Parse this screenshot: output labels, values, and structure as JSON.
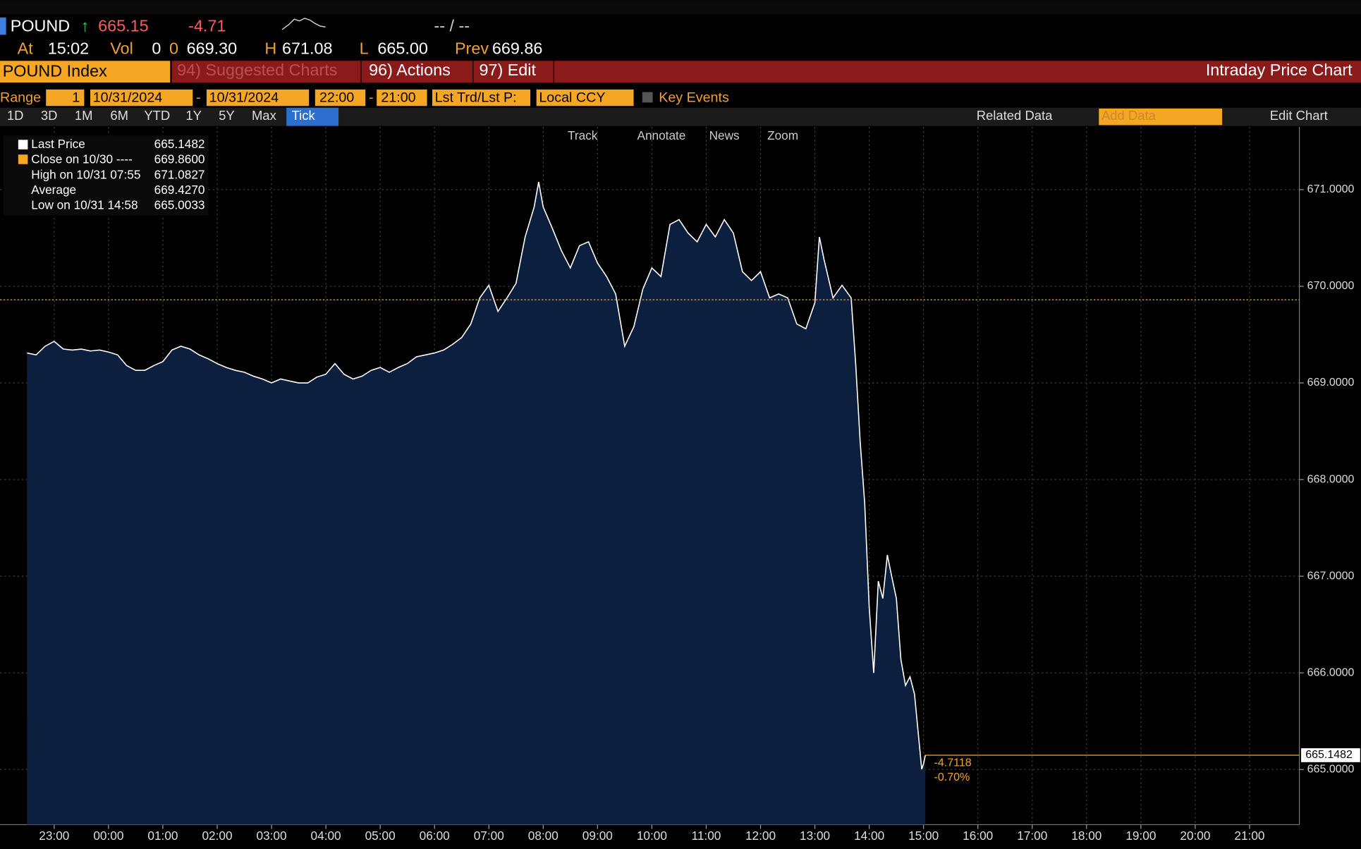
{
  "header": {
    "ticker": "POUND",
    "price": "665.15",
    "change": "-4.71",
    "bid_ask": "-- / --",
    "at": "At",
    "time": "15:02",
    "vol": "Vol",
    "vol_value": "0",
    "vol_value2": "0",
    "open": "669.30",
    "high_label": "H",
    "high": "671.08",
    "low_label": "L",
    "low": "665.00",
    "prev_label": "Prev",
    "prev": "669.86"
  },
  "toolbar": {
    "security": "POUND Index",
    "suggested": "94) Suggested Charts",
    "actions": "96) Actions",
    "edit": "97) Edit",
    "view": "Intraday Price Chart"
  },
  "range": {
    "label": "Range",
    "period": "1",
    "start": "10/31/2024",
    "dash1": "-",
    "end": "10/31/2024",
    "time_start": "22:00",
    "dash2": "-",
    "time_end": "21:00",
    "field": "Lst Trd/Lst P:",
    "currency": "Local CCY",
    "key_events": "Key Events"
  },
  "periods": [
    "1D",
    "3D",
    "1M",
    "6M",
    "YTD",
    "1Y",
    "5Y",
    "Max",
    "Tick"
  ],
  "right_tools": {
    "related": "Related Data",
    "add": "Add Data",
    "edit_chart": "Edit Chart"
  },
  "chart_tools": [
    "Track",
    "Annotate",
    "News",
    "Zoom"
  ],
  "legend": [
    {
      "name": "Last Price",
      "value": "665.1482"
    },
    {
      "name": "Close on 10/30 ----",
      "value": "669.8600"
    },
    {
      "name": "High on 10/31 07:55",
      "value": "671.0827"
    },
    {
      "name": "Average",
      "value": "669.4270"
    },
    {
      "name": "Low on 10/31 14:58",
      "value": "665.0033"
    }
  ],
  "chart_data": {
    "type": "area",
    "color": "#0d1f3f",
    "line_color": "#ffffff",
    "x": [
      "22:30",
      "22:40",
      "22:50",
      "23:00",
      "23:10",
      "23:20",
      "23:30",
      "23:40",
      "23:50",
      "00:00",
      "00:10",
      "00:20",
      "00:30",
      "00:40",
      "00:50",
      "01:00",
      "01:10",
      "01:20",
      "01:30",
      "01:40",
      "01:50",
      "02:00",
      "02:10",
      "02:20",
      "02:30",
      "02:40",
      "02:50",
      "03:00",
      "03:10",
      "03:20",
      "03:30",
      "03:40",
      "03:50",
      "04:00",
      "04:10",
      "04:20",
      "04:30",
      "04:40",
      "04:50",
      "05:00",
      "05:10",
      "05:20",
      "05:30",
      "05:40",
      "05:50",
      "06:00",
      "06:10",
      "06:20",
      "06:30",
      "06:40",
      "06:50",
      "07:00",
      "07:10",
      "07:20",
      "07:30",
      "07:40",
      "07:50",
      "07:55",
      "08:00",
      "08:10",
      "08:20",
      "08:30",
      "08:40",
      "08:50",
      "09:00",
      "09:10",
      "09:20",
      "09:30",
      "09:40",
      "09:50",
      "10:00",
      "10:10",
      "10:20",
      "10:30",
      "10:40",
      "10:50",
      "11:00",
      "11:10",
      "11:20",
      "11:30",
      "11:40",
      "11:50",
      "12:00",
      "12:10",
      "12:20",
      "12:30",
      "12:40",
      "12:50",
      "13:00",
      "13:05",
      "13:10",
      "13:20",
      "13:30",
      "13:40",
      "13:45",
      "13:50",
      "13:55",
      "14:00",
      "14:05",
      "14:10",
      "14:15",
      "14:20",
      "14:25",
      "14:30",
      "14:35",
      "14:40",
      "14:45",
      "14:50",
      "14:58",
      "15:00",
      "15:02"
    ],
    "values": [
      669.31,
      669.29,
      669.38,
      669.43,
      669.35,
      669.34,
      669.35,
      669.33,
      669.34,
      669.32,
      669.29,
      669.18,
      669.13,
      669.13,
      669.18,
      669.22,
      669.34,
      669.38,
      669.35,
      669.29,
      669.25,
      669.2,
      669.16,
      669.13,
      669.11,
      669.07,
      669.04,
      669.0,
      669.04,
      669.02,
      669.0,
      669.0,
      669.06,
      669.09,
      669.2,
      669.09,
      669.04,
      669.07,
      669.13,
      669.16,
      669.11,
      669.16,
      669.2,
      669.27,
      669.29,
      669.31,
      669.34,
      669.4,
      669.47,
      669.61,
      669.88,
      670.01,
      669.74,
      669.88,
      670.03,
      670.51,
      670.82,
      671.08,
      670.82,
      670.6,
      670.37,
      670.19,
      670.42,
      670.46,
      670.24,
      670.1,
      669.92,
      669.38,
      669.58,
      669.97,
      670.19,
      670.1,
      670.64,
      670.69,
      670.55,
      670.46,
      670.64,
      670.51,
      670.69,
      670.55,
      670.15,
      670.06,
      670.15,
      669.88,
      669.92,
      669.88,
      669.61,
      669.56,
      669.83,
      670.51,
      670.28,
      669.88,
      670.01,
      669.88,
      669.2,
      668.39,
      667.76,
      666.68,
      666.0,
      666.95,
      666.77,
      667.22,
      666.99,
      666.77,
      666.14,
      665.87,
      665.96,
      665.78,
      665.0033,
      665.06,
      665.1482
    ],
    "xlim": [
      "22:27",
      "21:55"
    ],
    "xticks": [
      "23:00",
      "00:00",
      "01:00",
      "02:00",
      "03:00",
      "04:00",
      "05:00",
      "06:00",
      "07:00",
      "08:00",
      "09:00",
      "10:00",
      "11:00",
      "12:00",
      "13:00",
      "14:00",
      "15:00",
      "16:00",
      "17:00",
      "18:00",
      "19:00",
      "20:00",
      "21:00"
    ],
    "ylim": [
      664.43,
      671.65
    ],
    "yticks": [
      {
        "value": 665,
        "label": "665.0000"
      },
      {
        "value": 666,
        "label": "666.0000"
      },
      {
        "value": 667,
        "label": "667.0000"
      },
      {
        "value": 668,
        "label": "668.0000"
      },
      {
        "value": 669,
        "label": "669.0000"
      },
      {
        "value": 670,
        "label": "670.0000"
      },
      {
        "value": 671,
        "label": "671.0000"
      }
    ],
    "close_line": 669.86,
    "last_price": 665.1482,
    "change": -4.7118,
    "change_pct": {
      "value": -0.7,
      "label": "-0.70%"
    },
    "grid": true
  }
}
